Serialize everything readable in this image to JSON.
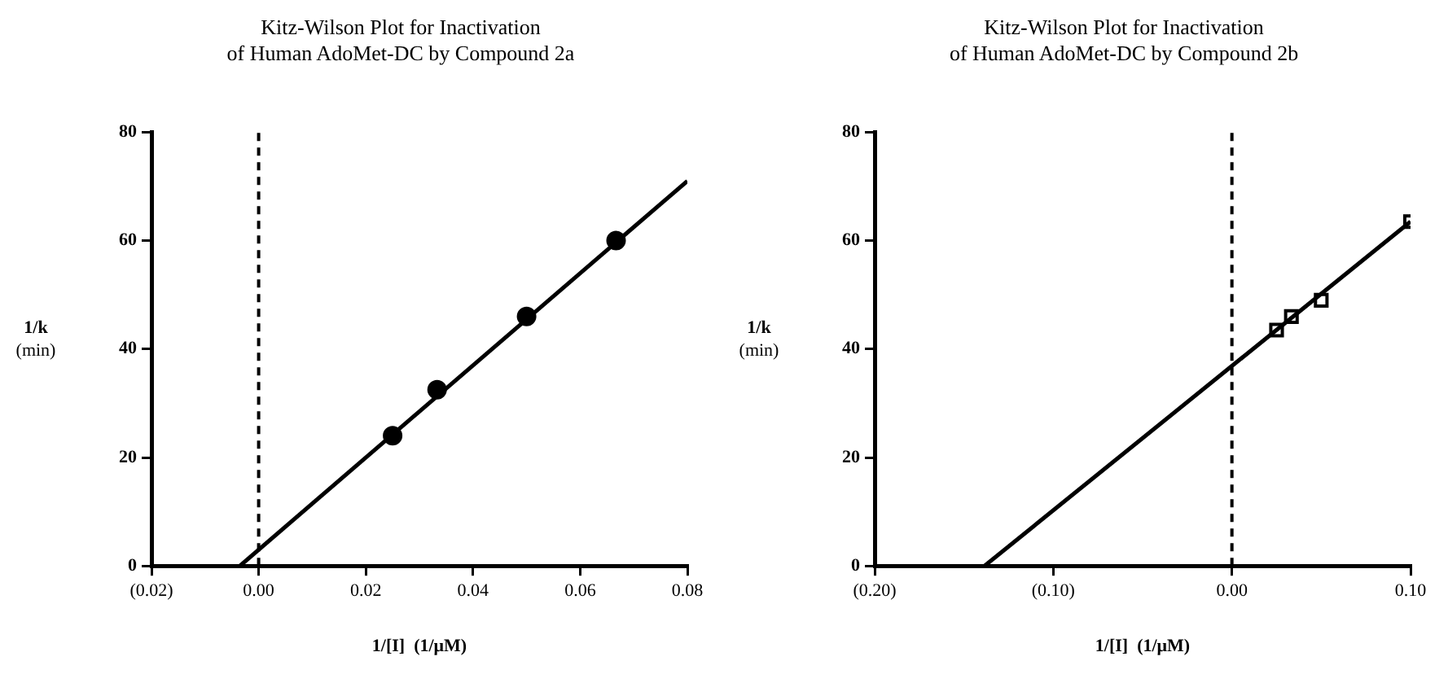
{
  "chart_data": [
    {
      "type": "scatter",
      "title": "Kitz-Wilson Plot for Inactivation of Human AdoMet-DC by Compound 2a",
      "xlabel": "1/[I]  (1/μM)",
      "ylabel": "1/k (min)",
      "xlim": [
        -0.02,
        0.08
      ],
      "xticks": [
        {
          "value": -0.02,
          "label": "(0.02)"
        },
        {
          "value": 0,
          "label": "0.00"
        },
        {
          "value": 0.02,
          "label": "0.02"
        },
        {
          "value": 0.04,
          "label": "0.04"
        },
        {
          "value": 0.06,
          "label": "0.06"
        },
        {
          "value": 0.08,
          "label": "0.08"
        }
      ],
      "ylim": [
        0,
        80
      ],
      "yticks": [
        0,
        20,
        40,
        60,
        80
      ],
      "grid": false,
      "legend": false,
      "marker": "circle",
      "ref_lines": [
        {
          "axis": "x",
          "value": 0,
          "line_style": "dashed",
          "color": "#000000"
        }
      ],
      "series": [
        {
          "color": "#000000",
          "x": [
            0.025,
            0.0333,
            0.05,
            0.0667
          ],
          "values": [
            24,
            32.5,
            46,
            60
          ]
        },
        {
          "type": "line",
          "color": "#000000",
          "marker": "none",
          "x": [
            -0.0035,
            0.08
          ],
          "values": [
            0,
            71
          ]
        }
      ]
    },
    {
      "type": "scatter",
      "title": "Kitz-Wilson Plot for Inactivation of Human AdoMet-DC by Compound 2b",
      "xlabel": "1/[I]  (1/μM)",
      "ylabel": "1/k (min)",
      "xlim": [
        -0.2,
        0.1
      ],
      "xticks": [
        {
          "value": -0.2,
          "label": "(0.20)"
        },
        {
          "value": -0.1,
          "label": "(0.10)"
        },
        {
          "value": 0,
          "label": "0.00"
        },
        {
          "value": 0.1,
          "label": "0.10"
        }
      ],
      "ylim": [
        0,
        80
      ],
      "yticks": [
        0,
        20,
        40,
        60,
        80
      ],
      "grid": false,
      "legend": false,
      "marker": "square",
      "ref_lines": [
        {
          "axis": "x",
          "value": 0,
          "line_style": "dashed",
          "color": "#000000"
        }
      ],
      "series": [
        {
          "color": "#000000",
          "x": [
            0.025,
            0.0333,
            0.05,
            0.1
          ],
          "values": [
            43.5,
            46,
            49,
            63.5
          ]
        },
        {
          "type": "line",
          "color": "#000000",
          "marker": "none",
          "x": [
            -0.1385,
            0.1
          ],
          "values": [
            0,
            63.5
          ]
        }
      ]
    }
  ]
}
